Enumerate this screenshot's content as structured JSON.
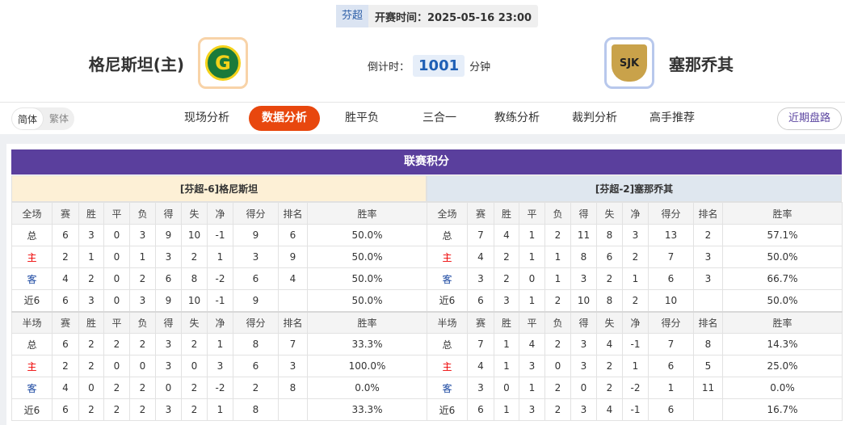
{
  "header": {
    "league": "芬超",
    "kickoff": "开赛时间：2025-05-16 23:00",
    "home": {
      "name": "格尼斯坦(主)",
      "logo": "G"
    },
    "away": {
      "name": "塞那乔其",
      "logo": "SJK"
    },
    "countdown": {
      "label": "倒计时：",
      "value": "1001",
      "unit": "分钟"
    }
  },
  "nav": {
    "scripts": [
      "简体",
      "繁体"
    ],
    "tabs": [
      "现场分析",
      "数据分析",
      "胜平负",
      "三合一",
      "教练分析",
      "裁判分析",
      "高手推荐"
    ],
    "active": 1,
    "button": "近期盘路"
  },
  "standings": {
    "title": "联赛积分",
    "teams": [
      {
        "title": "[芬超-6]格尼斯坦",
        "blocks": [
          {
            "header": [
              "全场",
              "赛",
              "胜",
              "平",
              "负",
              "得",
              "失",
              "净",
              "得分",
              "排名",
              "胜率"
            ],
            "rows": [
              [
                "总",
                "6",
                "3",
                "0",
                "3",
                "9",
                "10",
                "-1",
                "9",
                "6",
                "50.0%"
              ],
              [
                "主",
                "2",
                "1",
                "0",
                "1",
                "3",
                "2",
                "1",
                "3",
                "9",
                "50.0%"
              ],
              [
                "客",
                "4",
                "2",
                "0",
                "2",
                "6",
                "8",
                "-2",
                "6",
                "4",
                "50.0%"
              ],
              [
                "近6",
                "6",
                "3",
                "0",
                "3",
                "9",
                "10",
                "-1",
                "9",
                null,
                "50.0%"
              ]
            ]
          },
          {
            "header": [
              "半场",
              "赛",
              "胜",
              "平",
              "负",
              "得",
              "失",
              "净",
              "得分",
              "排名",
              "胜率"
            ],
            "rows": [
              [
                "总",
                "6",
                "2",
                "2",
                "2",
                "3",
                "2",
                "1",
                "8",
                "7",
                "33.3%"
              ],
              [
                "主",
                "2",
                "2",
                "0",
                "0",
                "3",
                "0",
                "3",
                "6",
                "3",
                "100.0%"
              ],
              [
                "客",
                "4",
                "0",
                "2",
                "2",
                "0",
                "2",
                "-2",
                "2",
                "8",
                "0.0%"
              ],
              [
                "近6",
                "6",
                "2",
                "2",
                "2",
                "3",
                "2",
                "1",
                "8",
                null,
                "33.3%"
              ]
            ]
          }
        ]
      },
      {
        "title": "[芬超-2]塞那乔其",
        "blocks": [
          {
            "header": [
              "全场",
              "赛",
              "胜",
              "平",
              "负",
              "得",
              "失",
              "净",
              "得分",
              "排名",
              "胜率"
            ],
            "rows": [
              [
                "总",
                "7",
                "4",
                "1",
                "2",
                "11",
                "8",
                "3",
                "13",
                "2",
                "57.1%"
              ],
              [
                "主",
                "4",
                "2",
                "1",
                "1",
                "8",
                "6",
                "2",
                "7",
                "3",
                "50.0%"
              ],
              [
                "客",
                "3",
                "2",
                "0",
                "1",
                "3",
                "2",
                "1",
                "6",
                "3",
                "66.7%"
              ],
              [
                "近6",
                "6",
                "3",
                "1",
                "2",
                "10",
                "8",
                "2",
                "10",
                null,
                "50.0%"
              ]
            ]
          },
          {
            "header": [
              "半场",
              "赛",
              "胜",
              "平",
              "负",
              "得",
              "失",
              "净",
              "得分",
              "排名",
              "胜率"
            ],
            "rows": [
              [
                "总",
                "7",
                "1",
                "4",
                "2",
                "3",
                "4",
                "-1",
                "7",
                "8",
                "14.3%"
              ],
              [
                "主",
                "4",
                "1",
                "3",
                "0",
                "3",
                "2",
                "1",
                "6",
                "5",
                "25.0%"
              ],
              [
                "客",
                "3",
                "0",
                "1",
                "2",
                "0",
                "2",
                "-2",
                "1",
                "11",
                "0.0%"
              ],
              [
                "近6",
                "6",
                "1",
                "3",
                "2",
                "3",
                "4",
                "-1",
                "6",
                null,
                "16.7%"
              ]
            ]
          }
        ]
      }
    ]
  }
}
